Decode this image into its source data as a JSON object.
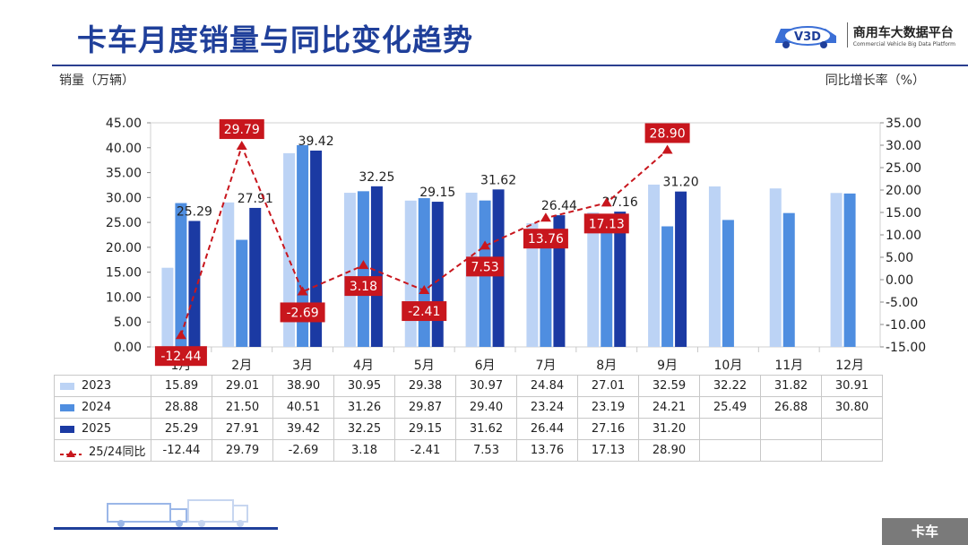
{
  "page": {
    "title": "卡车月度销量与同比变化趋势",
    "footer_tab": "卡车"
  },
  "brand": {
    "logo_text": "V3D",
    "name": "商用车大数据平台",
    "name_en": "Commercial Vehicle Big Data Platform"
  },
  "chart_data": {
    "type": "bar",
    "categories": [
      "1月",
      "2月",
      "3月",
      "4月",
      "5月",
      "6月",
      "7月",
      "8月",
      "9月",
      "10月",
      "11月",
      "12月"
    ],
    "series": [
      {
        "name": "2023",
        "values": [
          15.89,
          29.01,
          38.9,
          30.95,
          29.38,
          30.97,
          24.84,
          27.01,
          32.59,
          32.22,
          31.82,
          30.91
        ],
        "color": "#bcd3f5"
      },
      {
        "name": "2024",
        "values": [
          28.88,
          21.5,
          40.51,
          31.26,
          29.87,
          29.4,
          23.24,
          23.19,
          24.21,
          25.49,
          26.88,
          30.8
        ],
        "color": "#4f8ee0"
      },
      {
        "name": "2025",
        "values": [
          25.29,
          27.91,
          39.42,
          32.25,
          29.15,
          31.62,
          26.44,
          27.16,
          31.2,
          null,
          null,
          null
        ],
        "color": "#1b3aa3"
      }
    ],
    "line": {
      "name": "25/24同比",
      "values": [
        -12.44,
        29.79,
        -2.69,
        3.18,
        -2.41,
        7.53,
        13.76,
        17.13,
        28.9
      ],
      "color": "#c8161d"
    },
    "ylabel": "销量（万辆）",
    "y2label": "同比增长率（%）",
    "ylim": [
      0,
      45
    ],
    "y2lim": [
      -15,
      35
    ],
    "yticks": [
      "0.00",
      "5.00",
      "10.00",
      "15.00",
      "20.00",
      "25.00",
      "30.00",
      "35.00",
      "40.00",
      "45.00"
    ],
    "y2ticks": [
      "-15.00",
      "-10.00",
      "-5.00",
      "0.00",
      "5.00",
      "10.00",
      "15.00",
      "20.00",
      "25.00",
      "30.00",
      "35.00"
    ],
    "table": {
      "rows": [
        {
          "label": "2023",
          "values": [
            "15.89",
            "29.01",
            "38.90",
            "30.95",
            "29.38",
            "30.97",
            "24.84",
            "27.01",
            "32.59",
            "32.22",
            "31.82",
            "30.91"
          ]
        },
        {
          "label": "2024",
          "values": [
            "28.88",
            "21.50",
            "40.51",
            "31.26",
            "29.87",
            "29.40",
            "23.24",
            "23.19",
            "24.21",
            "25.49",
            "26.88",
            "30.80"
          ]
        },
        {
          "label": "2025",
          "values": [
            "25.29",
            "27.91",
            "39.42",
            "32.25",
            "29.15",
            "31.62",
            "26.44",
            "27.16",
            "31.20",
            "",
            "",
            ""
          ]
        },
        {
          "label": "25/24同比",
          "values": [
            "-12.44",
            "29.79",
            "-2.69",
            "3.18",
            "-2.41",
            "7.53",
            "13.76",
            "17.13",
            "28.90",
            "",
            "",
            ""
          ]
        }
      ]
    }
  }
}
